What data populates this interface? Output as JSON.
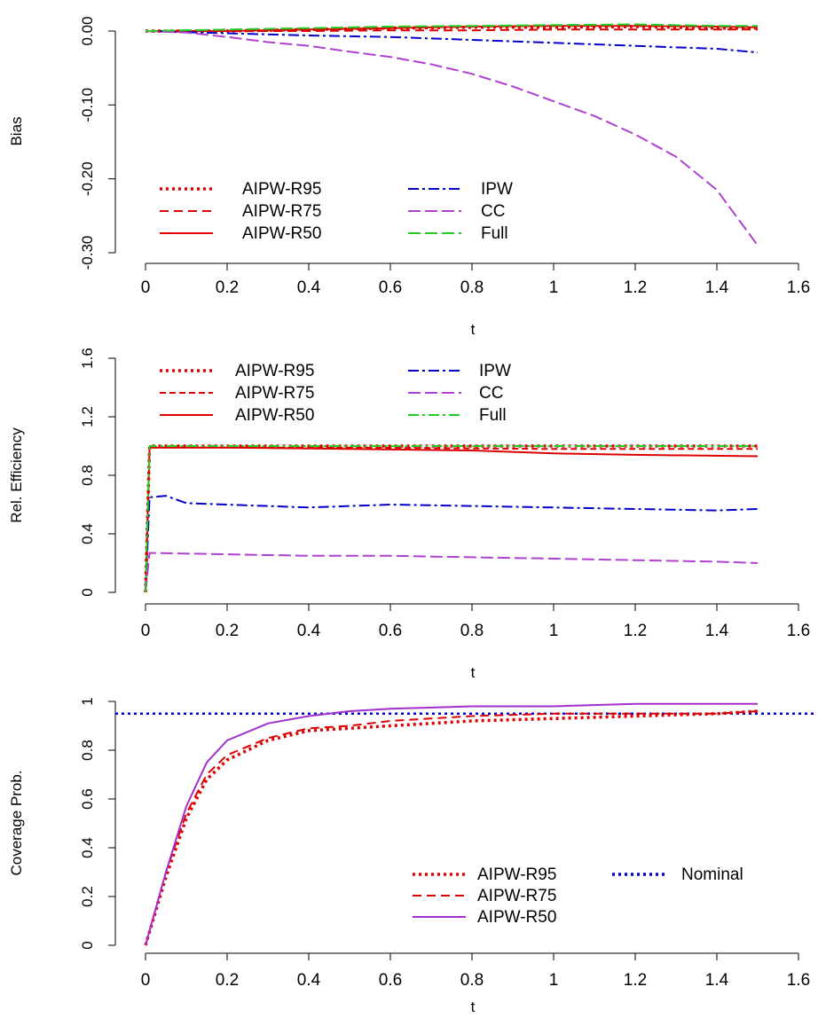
{
  "chart_data": [
    {
      "type": "line",
      "xlabel": "t",
      "ylabel": "Bias",
      "xlim": [
        0,
        1.6
      ],
      "ylim": [
        -0.3,
        0.03
      ],
      "xticks": [
        "0",
        "0.2",
        "0.4",
        "0.6",
        "0.8",
        "1",
        "1.2",
        "1.4",
        "1.6"
      ],
      "yticks": [
        {
          "value": 0.0,
          "label": "0.00"
        },
        {
          "value": -0.1,
          "label": "-0.10"
        },
        {
          "value": -0.2,
          "label": "-0.20"
        },
        {
          "value": -0.3,
          "label": "-0.30"
        }
      ],
      "legend_position": "bottom-left",
      "series": [
        {
          "name": "AIPW-R95",
          "color": "#dd0000",
          "dash": "dotted",
          "x": [
            0,
            0.2,
            0.4,
            0.6,
            0.8,
            1.0,
            1.2,
            1.4,
            1.5
          ],
          "values": [
            0.0,
            0.0,
            0.002,
            0.004,
            0.005,
            0.005,
            0.006,
            0.004,
            0.004
          ]
        },
        {
          "name": "AIPW-R75",
          "color": "#dd0000",
          "dash": "dashed",
          "x": [
            0,
            0.2,
            0.4,
            0.6,
            0.8,
            1.0,
            1.2,
            1.4,
            1.5
          ],
          "values": [
            0.0,
            0.0,
            0.0,
            0.001,
            0.001,
            0.002,
            0.002,
            0.002,
            0.002
          ]
        },
        {
          "name": "AIPW-R50",
          "color": "#dd0000",
          "dash": "solid",
          "x": [
            0,
            0.2,
            0.4,
            0.6,
            0.8,
            1.0,
            1.2,
            1.4,
            1.5
          ],
          "values": [
            0.0,
            0.0,
            0.002,
            0.004,
            0.006,
            0.007,
            0.007,
            0.006,
            0.005
          ]
        },
        {
          "name": "IPW",
          "color": "#0000cc",
          "dash": "dotdash",
          "x": [
            0,
            0.2,
            0.4,
            0.6,
            0.8,
            1.0,
            1.2,
            1.4,
            1.5
          ],
          "values": [
            0.0,
            -0.003,
            -0.006,
            -0.008,
            -0.012,
            -0.016,
            -0.02,
            -0.024,
            -0.029
          ]
        },
        {
          "name": "CC",
          "color": "#b040d0",
          "dash": "longdash",
          "x": [
            0,
            0.1,
            0.2,
            0.3,
            0.4,
            0.5,
            0.6,
            0.7,
            0.8,
            0.9,
            1.0,
            1.1,
            1.2,
            1.3,
            1.4,
            1.5
          ],
          "values": [
            0.0,
            -0.002,
            -0.008,
            -0.015,
            -0.02,
            -0.028,
            -0.035,
            -0.045,
            -0.058,
            -0.075,
            -0.095,
            -0.115,
            -0.14,
            -0.17,
            -0.215,
            -0.29
          ]
        },
        {
          "name": "Full",
          "color": "#22cc22",
          "dash": "longdash",
          "x": [
            0,
            0.2,
            0.4,
            0.6,
            0.8,
            1.0,
            1.2,
            1.4,
            1.5
          ],
          "values": [
            0.0,
            0.002,
            0.004,
            0.006,
            0.007,
            0.008,
            0.009,
            0.007,
            0.007
          ]
        }
      ]
    },
    {
      "type": "line",
      "xlabel": "t",
      "ylabel": "Rel. Efficiency",
      "xlim": [
        0,
        1.6
      ],
      "ylim": [
        0,
        1.6
      ],
      "xticks": [
        "0",
        "0.2",
        "0.4",
        "0.6",
        "0.8",
        "1",
        "1.2",
        "1.4",
        "1.6"
      ],
      "yticks": [
        {
          "value": 0,
          "label": "0"
        },
        {
          "value": 0.4,
          "label": "0.4"
        },
        {
          "value": 0.8,
          "label": "0.8"
        },
        {
          "value": 1.2,
          "label": "1.2"
        },
        {
          "value": 1.6,
          "label": "1.6"
        }
      ],
      "legend_position": "top-left",
      "series": [
        {
          "name": "AIPW-R95",
          "color": "#dd0000",
          "dash": "dotted",
          "x": [
            0,
            0.01,
            0.1,
            0.5,
            1.0,
            1.5
          ],
          "values": [
            0,
            1.0,
            1.0,
            1.0,
            1.0,
            1.0
          ]
        },
        {
          "name": "AIPW-R75",
          "color": "#dd0000",
          "dash": "shortdash",
          "x": [
            0,
            0.01,
            0.1,
            0.5,
            1.0,
            1.5
          ],
          "values": [
            0,
            0.99,
            0.99,
            0.99,
            0.98,
            0.98
          ]
        },
        {
          "name": "AIPW-R50",
          "color": "#dd0000",
          "dash": "solid",
          "x": [
            0,
            0.01,
            0.2,
            0.5,
            0.8,
            1.0,
            1.2,
            1.5
          ],
          "values": [
            0,
            0.99,
            0.99,
            0.98,
            0.97,
            0.95,
            0.94,
            0.93
          ]
        },
        {
          "name": "IPW",
          "color": "#0000cc",
          "dash": "dotdash",
          "x": [
            0,
            0.01,
            0.05,
            0.1,
            0.2,
            0.4,
            0.6,
            0.8,
            1.0,
            1.2,
            1.4,
            1.5
          ],
          "values": [
            0,
            0.65,
            0.66,
            0.61,
            0.6,
            0.58,
            0.6,
            0.59,
            0.58,
            0.57,
            0.56,
            0.57
          ]
        },
        {
          "name": "CC",
          "color": "#b040d0",
          "dash": "longdash",
          "x": [
            0,
            0.01,
            0.2,
            0.4,
            0.6,
            0.8,
            1.0,
            1.2,
            1.4,
            1.5
          ],
          "values": [
            0,
            0.27,
            0.26,
            0.25,
            0.25,
            0.24,
            0.23,
            0.22,
            0.21,
            0.2
          ]
        },
        {
          "name": "Full",
          "color": "#22cc22",
          "dash": "dotdash",
          "x": [
            0,
            0.01,
            0.5,
            1.0,
            1.5
          ],
          "values": [
            0,
            1.0,
            1.0,
            1.0,
            1.0
          ]
        }
      ]
    },
    {
      "type": "line",
      "xlabel": "t",
      "ylabel": "Coverage Prob.",
      "xlim": [
        0,
        1.6
      ],
      "ylim": [
        0,
        1.0
      ],
      "xticks": [
        "0",
        "0.2",
        "0.4",
        "0.6",
        "0.8",
        "1",
        "1.2",
        "1.4",
        "1.6"
      ],
      "yticks": [
        {
          "value": 0,
          "label": "0"
        },
        {
          "value": 0.2,
          "label": "0.2"
        },
        {
          "value": 0.4,
          "label": "0.4"
        },
        {
          "value": 0.6,
          "label": "0.6"
        },
        {
          "value": 0.8,
          "label": "0.8"
        },
        {
          "value": 1.0,
          "label": "1"
        }
      ],
      "legend_position": "bottom-right",
      "reference_line": {
        "name": "Nominal",
        "value": 0.95,
        "color": "#0000cc",
        "dash": "dotted"
      },
      "series": [
        {
          "name": "AIPW-R95",
          "color": "#dd0000",
          "dash": "dotted",
          "x": [
            0,
            0.05,
            0.1,
            0.15,
            0.2,
            0.3,
            0.4,
            0.5,
            0.6,
            0.8,
            1.0,
            1.2,
            1.4,
            1.5
          ],
          "values": [
            0,
            0.28,
            0.52,
            0.68,
            0.76,
            0.84,
            0.88,
            0.89,
            0.9,
            0.92,
            0.93,
            0.94,
            0.95,
            0.96
          ]
        },
        {
          "name": "AIPW-R75",
          "color": "#dd0000",
          "dash": "dashed",
          "x": [
            0,
            0.05,
            0.1,
            0.15,
            0.2,
            0.3,
            0.4,
            0.5,
            0.6,
            0.8,
            1.0,
            1.2,
            1.4,
            1.5
          ],
          "values": [
            0,
            0.3,
            0.54,
            0.7,
            0.78,
            0.85,
            0.89,
            0.9,
            0.92,
            0.94,
            0.95,
            0.95,
            0.95,
            0.96
          ]
        },
        {
          "name": "AIPW-R50",
          "color": "#a030d0",
          "dash": "solid",
          "x": [
            0,
            0.05,
            0.1,
            0.15,
            0.2,
            0.3,
            0.4,
            0.5,
            0.6,
            0.8,
            1.0,
            1.2,
            1.4,
            1.5
          ],
          "values": [
            0,
            0.3,
            0.57,
            0.75,
            0.84,
            0.91,
            0.94,
            0.96,
            0.97,
            0.98,
            0.98,
            0.99,
            0.99,
            0.99
          ]
        }
      ]
    }
  ]
}
